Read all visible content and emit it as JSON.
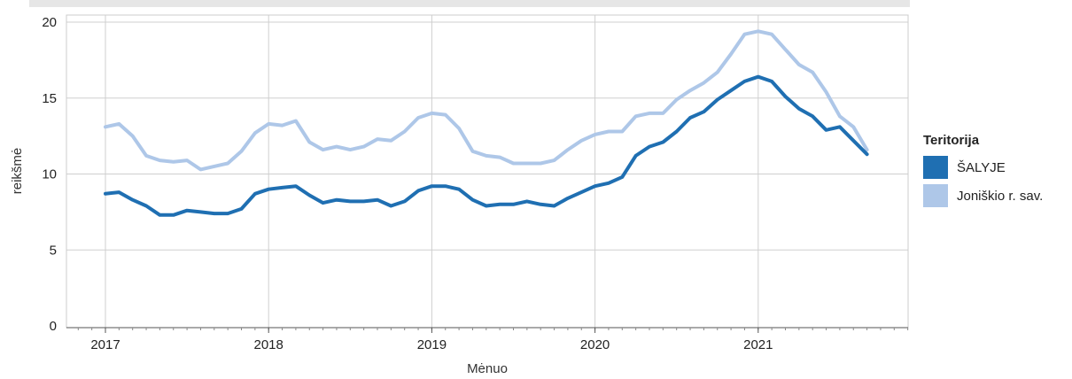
{
  "chart_data": {
    "type": "line",
    "xlabel": "Mėnuo",
    "ylabel": "reikšmė",
    "ylim": [
      0,
      20
    ],
    "yticks": [
      "0",
      "5",
      "10",
      "15",
      "20"
    ],
    "xticks": [
      "2017",
      "2018",
      "2019",
      "2020",
      "2021"
    ],
    "x_start": "2017-01",
    "grid": true,
    "legend": {
      "title": "Teritorija",
      "position": "right"
    },
    "series": [
      {
        "name": "ŠALYJE",
        "color": "#1f6fb2",
        "values": [
          8.7,
          8.8,
          8.3,
          7.9,
          7.3,
          7.3,
          7.6,
          7.5,
          7.4,
          7.4,
          7.7,
          8.7,
          9.0,
          9.1,
          9.2,
          8.6,
          8.1,
          8.3,
          8.2,
          8.2,
          8.3,
          7.9,
          8.2,
          8.9,
          9.2,
          9.2,
          9.0,
          8.3,
          7.9,
          8.0,
          8.0,
          8.2,
          8.0,
          7.9,
          8.4,
          8.8,
          9.2,
          9.4,
          9.8,
          11.2,
          11.8,
          12.1,
          12.8,
          13.7,
          14.1,
          14.9,
          15.5,
          16.1,
          16.4,
          16.1,
          15.1,
          14.3,
          13.8,
          12.9,
          13.1,
          12.2,
          11.3
        ]
      },
      {
        "name": "Joniškio r. sav.",
        "color": "#aec7e8",
        "values": [
          13.1,
          13.3,
          12.5,
          11.2,
          10.9,
          10.8,
          10.9,
          10.3,
          10.5,
          10.7,
          11.5,
          12.7,
          13.3,
          13.2,
          13.5,
          12.1,
          11.6,
          11.8,
          11.6,
          11.8,
          12.3,
          12.2,
          12.8,
          13.7,
          14.0,
          13.9,
          13.0,
          11.5,
          11.2,
          11.1,
          10.7,
          10.7,
          10.7,
          10.9,
          11.6,
          12.2,
          12.6,
          12.8,
          12.8,
          13.8,
          14.0,
          14.0,
          14.9,
          15.5,
          16.0,
          16.7,
          17.9,
          19.2,
          19.4,
          19.2,
          18.2,
          17.2,
          16.7,
          15.4,
          13.8,
          13.1,
          11.6
        ]
      }
    ]
  }
}
